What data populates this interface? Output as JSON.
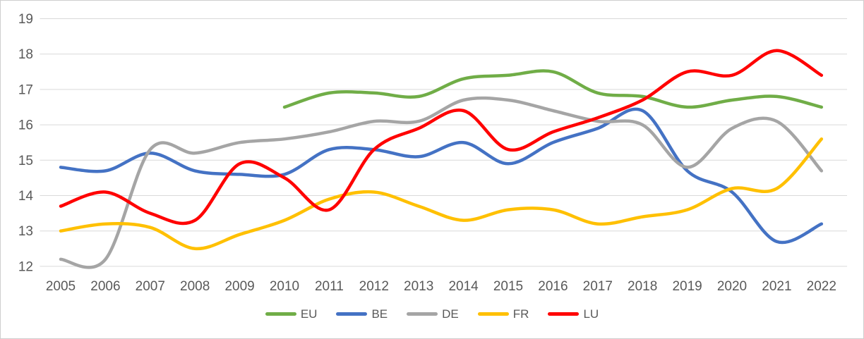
{
  "chart_data": {
    "type": "line",
    "smooth": true,
    "grid": true,
    "legend_position": "bottom",
    "title": "",
    "xlabel": "",
    "ylabel": "",
    "x": [
      2005,
      2006,
      2007,
      2008,
      2009,
      2010,
      2011,
      2012,
      2013,
      2014,
      2015,
      2016,
      2017,
      2018,
      2019,
      2020,
      2021,
      2022
    ],
    "y_ticks": [
      12,
      13,
      14,
      15,
      16,
      17,
      18,
      19
    ],
    "ylim": [
      12,
      19
    ],
    "series": [
      {
        "name": "EU",
        "color": "#70AD47",
        "start_year": 2010,
        "values": [
          16.5,
          16.9,
          16.9,
          16.8,
          17.3,
          17.4,
          17.5,
          16.9,
          16.8,
          16.5,
          16.7,
          16.8,
          16.5
        ]
      },
      {
        "name": "BE",
        "color": "#4472C4",
        "start_year": 2005,
        "values": [
          14.8,
          14.7,
          15.2,
          14.7,
          14.6,
          14.6,
          15.3,
          15.3,
          15.1,
          15.5,
          14.9,
          15.5,
          15.9,
          16.4,
          14.7,
          14.1,
          12.7,
          13.2
        ]
      },
      {
        "name": "DE",
        "color": "#A5A5A5",
        "start_year": 2005,
        "values": [
          12.2,
          12.2,
          15.3,
          15.2,
          15.5,
          15.6,
          15.8,
          16.1,
          16.1,
          16.7,
          16.7,
          16.4,
          16.1,
          16.0,
          14.8,
          15.9,
          16.1,
          14.7
        ]
      },
      {
        "name": "FR",
        "color": "#FFC000",
        "start_year": 2005,
        "values": [
          13.0,
          13.2,
          13.1,
          12.5,
          12.9,
          13.3,
          13.9,
          14.1,
          13.7,
          13.3,
          13.6,
          13.6,
          13.2,
          13.4,
          13.6,
          14.2,
          14.2,
          15.6
        ]
      },
      {
        "name": "LU",
        "color": "#FF0000",
        "start_year": 2005,
        "values": [
          13.7,
          14.1,
          13.5,
          13.3,
          14.9,
          14.5,
          13.6,
          15.3,
          15.9,
          16.4,
          15.3,
          15.8,
          16.2,
          16.7,
          17.5,
          17.4,
          18.1,
          17.4
        ]
      }
    ]
  },
  "styles": {
    "grid_color": "#D9D9D9",
    "axis_text_color": "#595959",
    "background": "#FFFFFF",
    "border_color": "#CFCFCF"
  }
}
